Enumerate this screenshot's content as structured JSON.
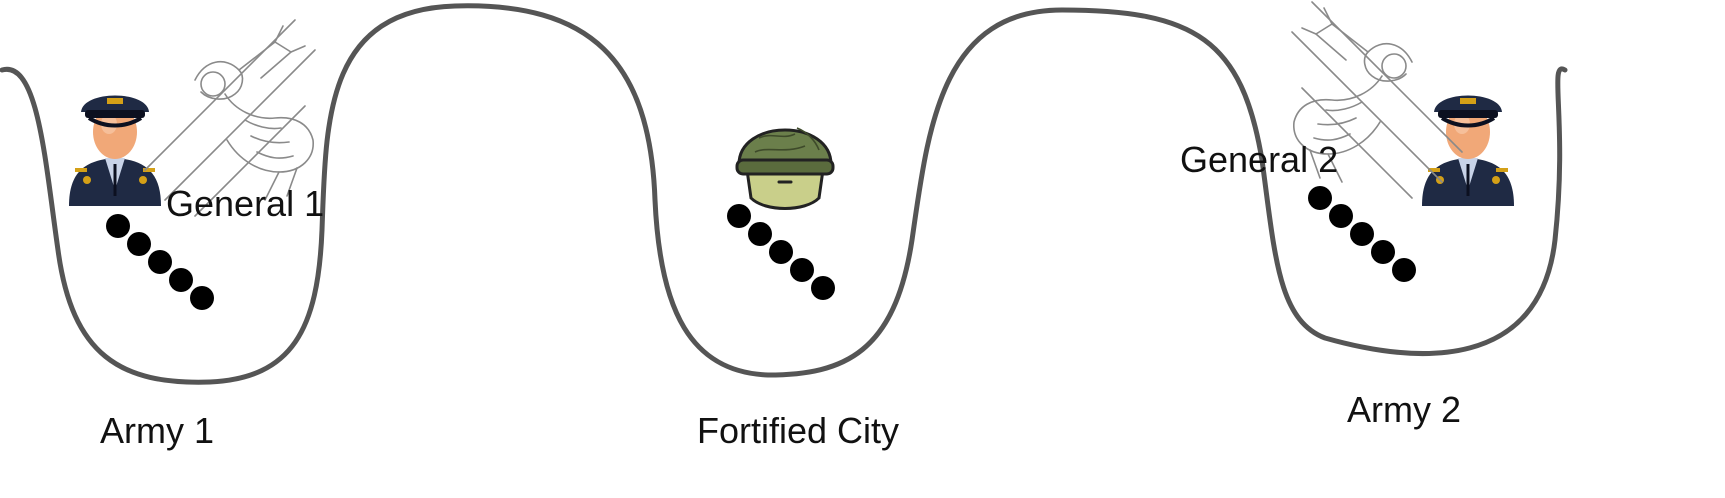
{
  "labels": {
    "general1": "General 1",
    "general2": "General 2",
    "army1": "Army 1",
    "army2": "Army 2",
    "city": "Fortified City"
  },
  "icons": {
    "general": "general-officer-icon",
    "soldier": "soldier-helmet-icon",
    "messenger": "slingshot-messenger-icon",
    "army": "stick-figure-army-icon"
  },
  "colors": {
    "terrain": "#555555",
    "helmet": "#6b7f4b",
    "face": "#c9cf8a",
    "uniform": "#1f2a44"
  }
}
